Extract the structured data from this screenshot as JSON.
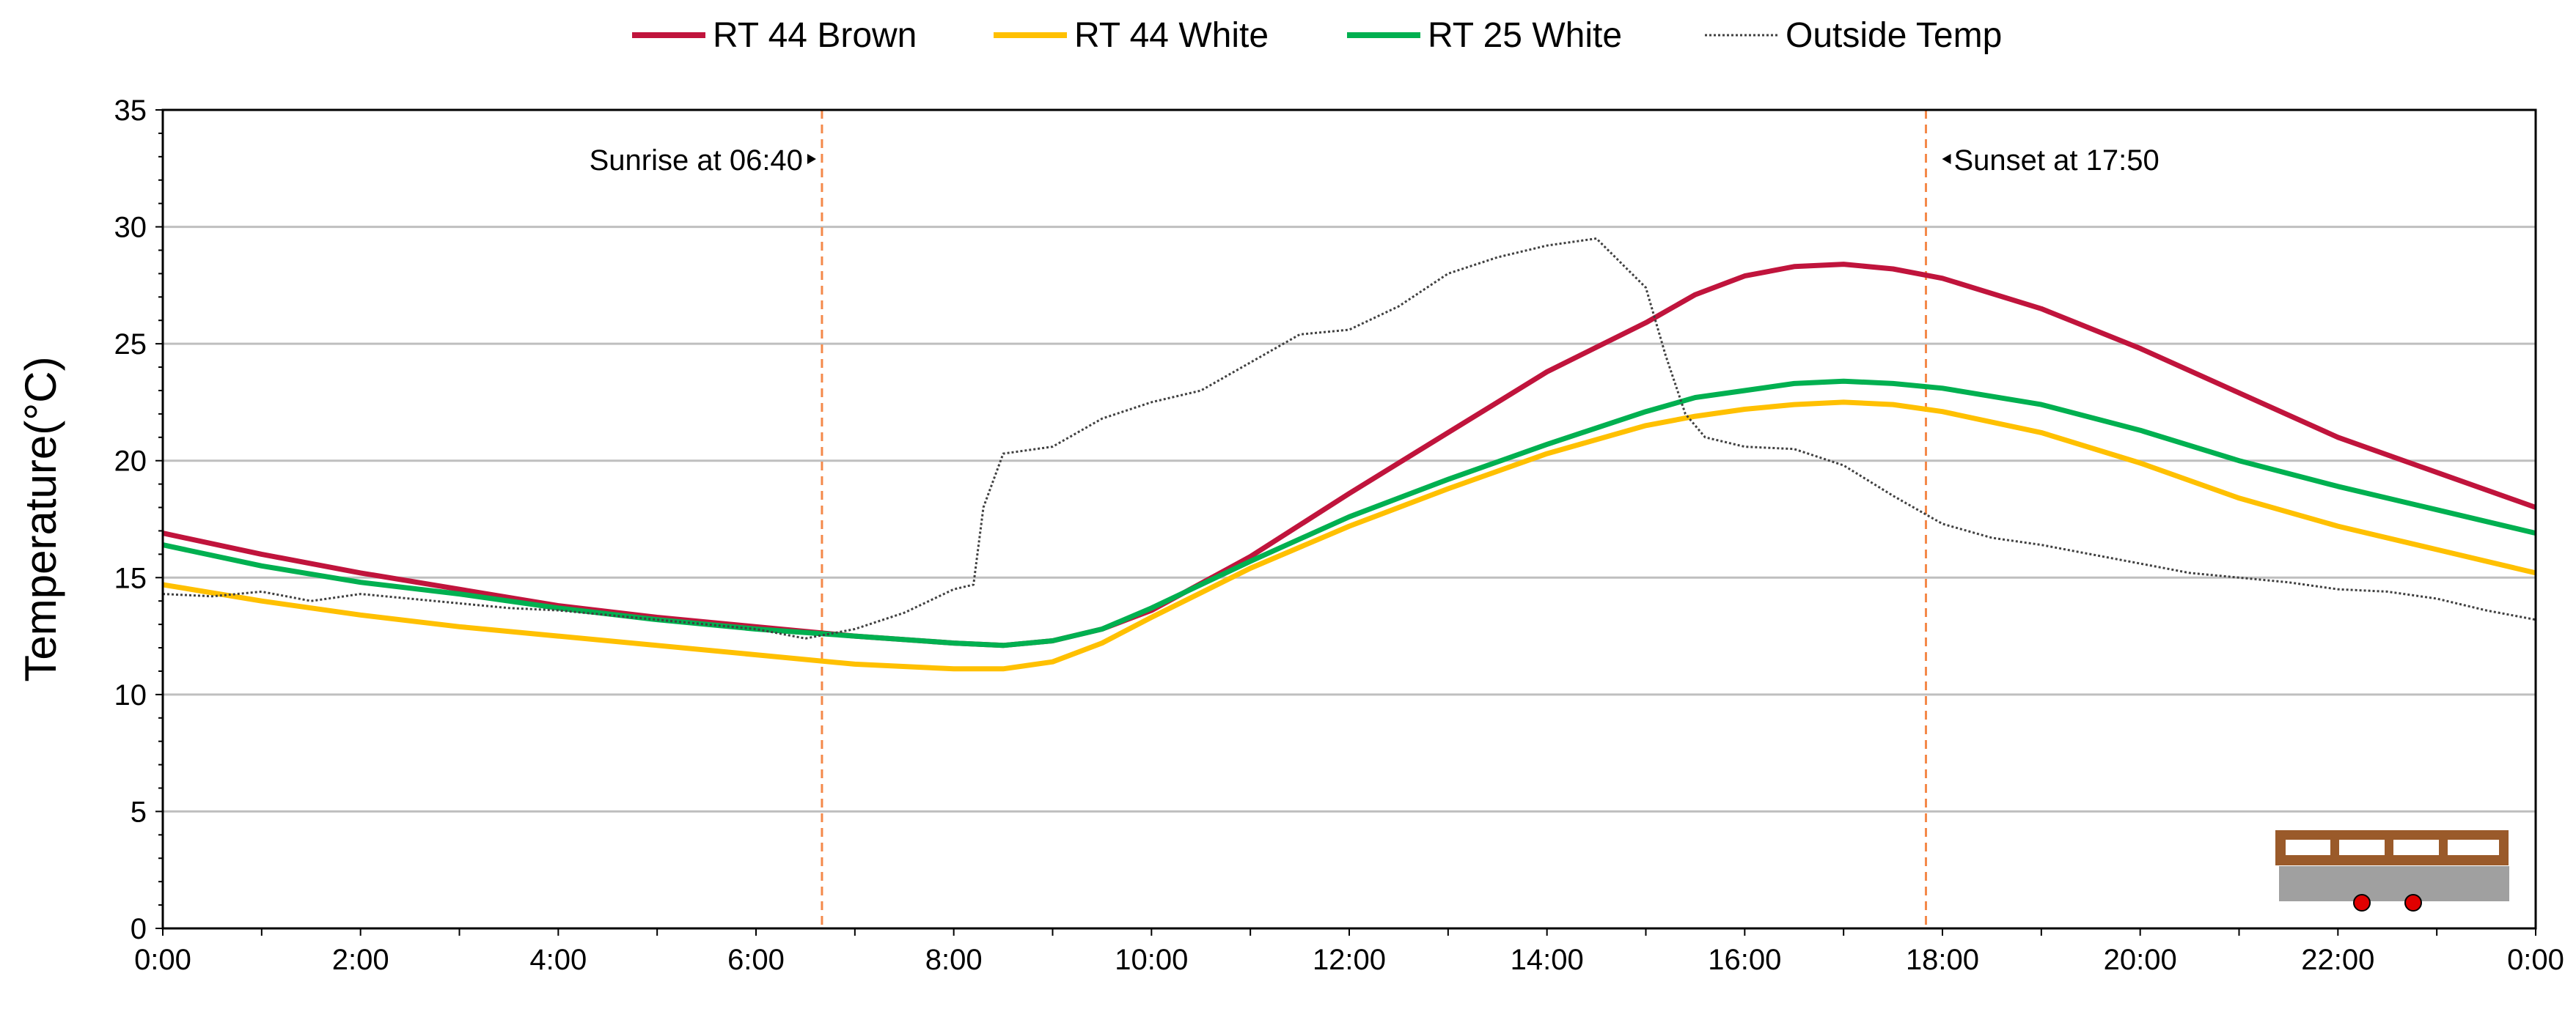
{
  "chart_data": {
    "type": "line",
    "ylabel": "Temperature(°C)",
    "xlabel": "",
    "xlim": [
      0,
      24
    ],
    "ylim": [
      0,
      35
    ],
    "yticks": [
      0,
      5,
      10,
      15,
      20,
      25,
      30,
      35
    ],
    "ytick_labels": [
      "0",
      "5",
      "10",
      "15",
      "20",
      "25",
      "30",
      "35"
    ],
    "xticks": [
      0,
      2,
      4,
      6,
      8,
      10,
      12,
      14,
      16,
      18,
      20,
      22,
      24
    ],
    "xtick_labels": [
      "0:00",
      "2:00",
      "4:00",
      "6:00",
      "8:00",
      "10:00",
      "12:00",
      "14:00",
      "16:00",
      "18:00",
      "20:00",
      "22:00",
      "0:00"
    ],
    "grid": "horizontal",
    "legend_position": "top",
    "series": [
      {
        "name": "RT 44 Brown",
        "color": "#c0143c",
        "style": "solid",
        "x": [
          0,
          1,
          2,
          3,
          4,
          5,
          6,
          7,
          8,
          8.5,
          9,
          9.5,
          10,
          11,
          12,
          13,
          14,
          15,
          15.5,
          16,
          16.5,
          17,
          17.5,
          18,
          19,
          20,
          21,
          22,
          23,
          24
        ],
        "y": [
          16.9,
          16.0,
          15.2,
          14.5,
          13.8,
          13.3,
          12.9,
          12.5,
          12.2,
          12.1,
          12.3,
          12.8,
          13.6,
          15.9,
          18.6,
          21.2,
          23.8,
          25.9,
          27.1,
          27.9,
          28.3,
          28.4,
          28.2,
          27.8,
          26.5,
          24.8,
          22.9,
          21.0,
          19.5,
          18.0
        ]
      },
      {
        "name": "RT 44 White",
        "color": "#ffc000",
        "style": "solid",
        "x": [
          0,
          1,
          2,
          3,
          4,
          5,
          6,
          7,
          8,
          8.5,
          9,
          9.5,
          10,
          11,
          12,
          13,
          14,
          15,
          15.5,
          16,
          16.5,
          17,
          17.5,
          18,
          19,
          20,
          21,
          22,
          23,
          24
        ],
        "y": [
          14.7,
          14.0,
          13.4,
          12.9,
          12.5,
          12.1,
          11.7,
          11.3,
          11.1,
          11.1,
          11.4,
          12.2,
          13.3,
          15.4,
          17.2,
          18.8,
          20.3,
          21.5,
          21.9,
          22.2,
          22.4,
          22.5,
          22.4,
          22.1,
          21.2,
          19.9,
          18.4,
          17.2,
          16.2,
          15.2
        ]
      },
      {
        "name": "RT 25 White",
        "color": "#00b050",
        "style": "solid",
        "x": [
          0,
          1,
          2,
          3,
          4,
          5,
          6,
          7,
          8,
          8.5,
          9,
          9.5,
          10,
          11,
          12,
          13,
          14,
          15,
          15.5,
          16,
          16.5,
          17,
          17.5,
          18,
          19,
          20,
          21,
          22,
          23,
          24
        ],
        "y": [
          16.4,
          15.5,
          14.8,
          14.3,
          13.7,
          13.2,
          12.8,
          12.5,
          12.2,
          12.1,
          12.3,
          12.8,
          13.7,
          15.7,
          17.6,
          19.2,
          20.7,
          22.1,
          22.7,
          23.0,
          23.3,
          23.4,
          23.3,
          23.1,
          22.4,
          21.3,
          20.0,
          18.9,
          17.9,
          16.9
        ]
      },
      {
        "name": "Outside Temp",
        "color": "#404040",
        "style": "dotted",
        "x": [
          0,
          0.5,
          1,
          1.5,
          2,
          2.5,
          3,
          3.5,
          4,
          4.5,
          5,
          5.5,
          6,
          6.5,
          7,
          7.5,
          8,
          8.2,
          8.3,
          8.5,
          9,
          9.5,
          10,
          10.5,
          11,
          11.5,
          12,
          12.5,
          13,
          13.5,
          14,
          14.5,
          15,
          15.2,
          15.4,
          15.6,
          16,
          16.5,
          17,
          17.5,
          18,
          18.5,
          19,
          19.5,
          20,
          20.5,
          21,
          21.5,
          22,
          22.5,
          23,
          23.5,
          24
        ],
        "y": [
          14.3,
          14.2,
          14.4,
          14.0,
          14.3,
          14.1,
          13.9,
          13.7,
          13.6,
          13.4,
          13.2,
          13.0,
          12.8,
          12.4,
          12.8,
          13.5,
          14.5,
          14.7,
          18.0,
          20.3,
          20.6,
          21.8,
          22.5,
          23.0,
          24.2,
          25.4,
          25.6,
          26.6,
          28.0,
          28.7,
          29.2,
          29.5,
          27.4,
          24.5,
          22.0,
          21.0,
          20.6,
          20.5,
          19.8,
          18.5,
          17.3,
          16.7,
          16.4,
          16.0,
          15.6,
          15.2,
          15.0,
          14.8,
          14.5,
          14.4,
          14.1,
          13.6,
          13.2
        ]
      }
    ],
    "annotations": [
      {
        "text": "Sunrise at 06:40",
        "x": 6.667,
        "arrow": "right",
        "line_color": "#f4894a"
      },
      {
        "text": "Sunset at 17:50",
        "x": 17.833,
        "arrow": "left",
        "line_color": "#f4894a"
      }
    ],
    "inset_icon": "deck-cross-section-icon"
  }
}
